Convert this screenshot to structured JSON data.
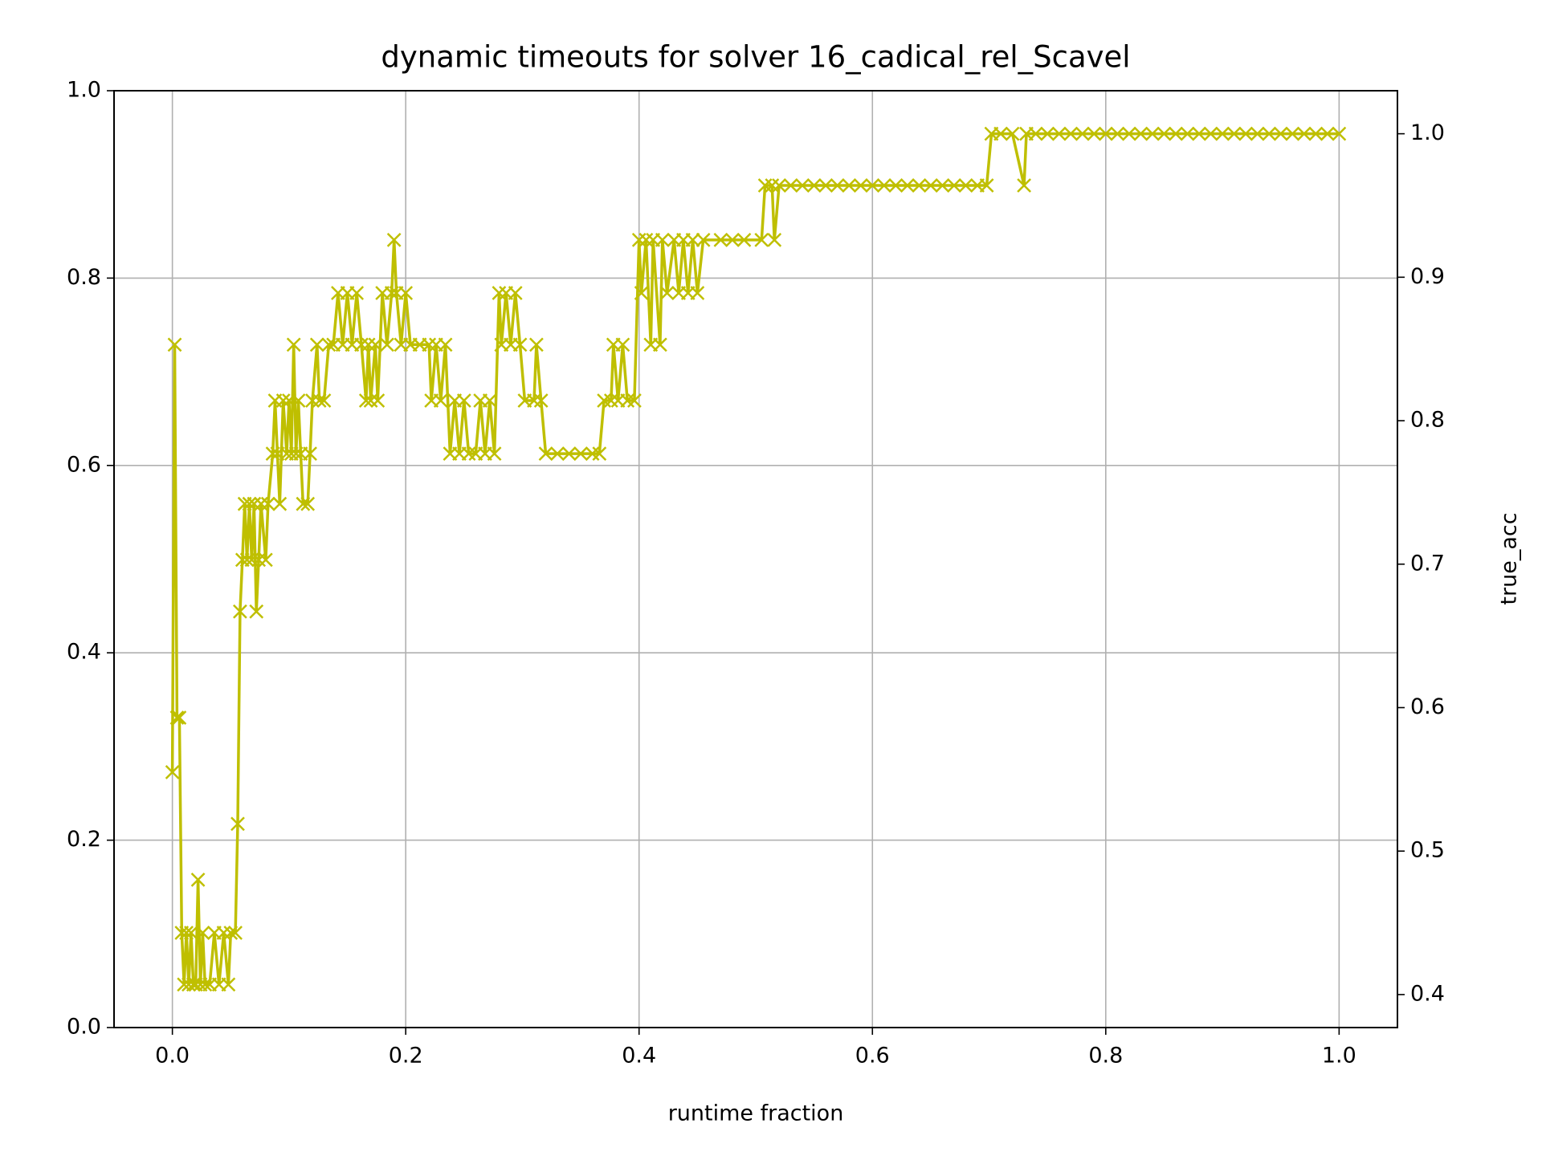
{
  "chart_data": {
    "type": "line",
    "title": "dynamic timeouts for solver 16_cadical_rel_Scavel",
    "xlabel": "runtime fraction",
    "y2label": "true_acc",
    "y2label_color": "red",
    "grid": true,
    "marker": "x",
    "xlim": [
      -0.05,
      1.05
    ],
    "xticks": [
      {
        "value": 0,
        "label": "0.0"
      },
      0.2,
      0.4,
      0.6,
      0.8,
      {
        "value": 1,
        "label": "1.0"
      }
    ],
    "ylim": [
      0,
      1
    ],
    "yticks": [
      {
        "value": 0,
        "label": "0.0"
      },
      0.2,
      0.4,
      0.6,
      0.8,
      {
        "value": 1,
        "label": "1.0"
      }
    ],
    "y2lim": [
      0.377,
      1.03
    ],
    "y2ticks": [
      0.4,
      0.5,
      0.6,
      0.7,
      0.8,
      0.9,
      {
        "value": 1,
        "label": "1.0"
      }
    ],
    "x": [
      0,
      0.002,
      0.004,
      0.006,
      0.008,
      0.01,
      0.012,
      0.014,
      0.016,
      0.018,
      0.02,
      0.022,
      0.024,
      0.026,
      0.028,
      0.032,
      0.036,
      0.04,
      0.044,
      0.048,
      0.05,
      0.054,
      0.056,
      0.058,
      0.06,
      0.062,
      0.064,
      0.066,
      0.068,
      0.07,
      0.072,
      0.074,
      0.076,
      0.08,
      0.082,
      0.086,
      0.088,
      0.09,
      0.092,
      0.095,
      0.098,
      0.1,
      0.102,
      0.104,
      0.106,
      0.108,
      0.11,
      0.112,
      0.116,
      0.118,
      0.12,
      0.124,
      0.126,
      0.13,
      0.134,
      0.138,
      0.142,
      0.146,
      0.15,
      0.154,
      0.158,
      0.162,
      0.166,
      0.168,
      0.17,
      0.174,
      0.176,
      0.18,
      0.184,
      0.188,
      0.19,
      0.192,
      0.196,
      0.2,
      0.204,
      0.212,
      0.22,
      0.222,
      0.226,
      0.23,
      0.234,
      0.238,
      0.242,
      0.246,
      0.25,
      0.254,
      0.26,
      0.264,
      0.268,
      0.272,
      0.276,
      0.28,
      0.282,
      0.286,
      0.29,
      0.294,
      0.298,
      0.302,
      0.31,
      0.312,
      0.316,
      0.32,
      0.33,
      0.34,
      0.35,
      0.36,
      0.366,
      0.37,
      0.376,
      0.378,
      0.382,
      0.386,
      0.39,
      0.396,
      0.4,
      0.402,
      0.406,
      0.41,
      0.412,
      0.418,
      0.42,
      0.424,
      0.43,
      0.434,
      0.438,
      0.442,
      0.446,
      0.45,
      0.455,
      0.47,
      0.48,
      0.49,
      0.505,
      0.508,
      0.514,
      0.516,
      0.52,
      0.53,
      0.54,
      0.55,
      0.56,
      0.57,
      0.58,
      0.59,
      0.6,
      0.61,
      0.62,
      0.63,
      0.64,
      0.65,
      0.66,
      0.67,
      0.68,
      0.69,
      0.698,
      0.702,
      0.71,
      0.72,
      0.73,
      0.732,
      0.74,
      0.75,
      0.76,
      0.77,
      0.78,
      0.79,
      0.8,
      0.81,
      0.82,
      0.83,
      0.84,
      0.85,
      0.86,
      0.87,
      0.88,
      0.89,
      0.9,
      0.91,
      0.92,
      0.93,
      0.94,
      0.95,
      0.96,
      0.97,
      0.98,
      0.99,
      1
    ],
    "series": [
      {
        "axis": "y2",
        "color": "#bfbf00",
        "values": [
          0.555,
          0.853,
          0.593,
          0.593,
          0.443,
          0.407,
          0.443,
          0.407,
          0.443,
          0.407,
          0.407,
          0.48,
          0.407,
          0.443,
          0.407,
          0.407,
          0.443,
          0.407,
          0.443,
          0.407,
          0.443,
          0.443,
          0.519,
          0.667,
          0.703,
          0.742,
          0.703,
          0.742,
          0.703,
          0.742,
          0.667,
          0.703,
          0.742,
          0.703,
          0.742,
          0.777,
          0.814,
          0.777,
          0.742,
          0.814,
          0.777,
          0.814,
          0.777,
          0.853,
          0.777,
          0.814,
          0.777,
          0.742,
          0.742,
          0.777,
          0.814,
          0.853,
          0.814,
          0.814,
          0.853,
          0.853,
          0.889,
          0.853,
          0.889,
          0.853,
          0.889,
          0.853,
          0.814,
          0.853,
          0.814,
          0.853,
          0.814,
          0.889,
          0.853,
          0.889,
          0.926,
          0.889,
          0.853,
          0.889,
          0.853,
          0.853,
          0.853,
          0.814,
          0.853,
          0.814,
          0.853,
          0.777,
          0.814,
          0.777,
          0.814,
          0.777,
          0.777,
          0.814,
          0.777,
          0.814,
          0.777,
          0.889,
          0.853,
          0.889,
          0.853,
          0.889,
          0.853,
          0.814,
          0.814,
          0.853,
          0.814,
          0.777,
          0.777,
          0.777,
          0.777,
          0.777,
          0.777,
          0.814,
          0.814,
          0.853,
          0.814,
          0.853,
          0.814,
          0.814,
          0.926,
          0.889,
          0.926,
          0.853,
          0.926,
          0.853,
          0.926,
          0.889,
          0.926,
          0.889,
          0.926,
          0.889,
          0.926,
          0.889,
          0.926,
          0.926,
          0.926,
          0.926,
          0.926,
          0.964,
          0.964,
          0.926,
          0.964,
          0.964,
          0.964,
          0.964,
          0.964,
          0.964,
          0.964,
          0.964,
          0.964,
          0.964,
          0.964,
          0.964,
          0.964,
          0.964,
          0.964,
          0.964,
          0.964,
          0.964,
          0.964,
          1,
          1,
          1,
          0.964,
          1,
          1,
          1,
          1,
          1,
          1,
          1,
          1,
          1,
          1,
          1,
          1,
          1,
          1,
          1,
          1,
          1,
          1,
          1,
          1,
          1,
          1,
          1,
          1,
          1,
          1,
          1,
          1
        ]
      }
    ]
  }
}
